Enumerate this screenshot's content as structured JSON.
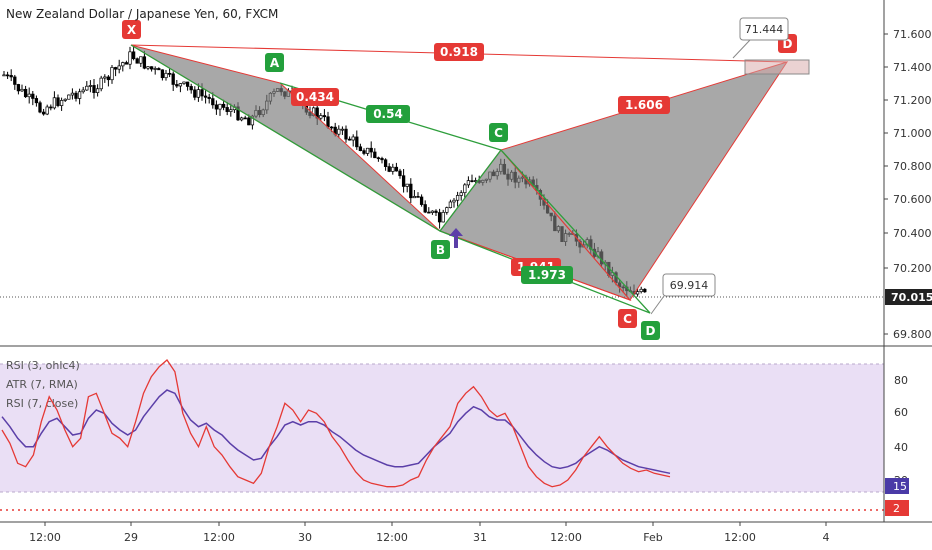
{
  "chart_data": {
    "type": "candlestick",
    "title": "New Zealand Dollar / Japanese Yen, 60, FXCM",
    "price_axis": {
      "ticks": [
        "71.600",
        "71.400",
        "71.200",
        "71.000",
        "70.800",
        "70.600",
        "70.400",
        "70.200",
        "69.800"
      ],
      "last_price": "70.015",
      "range": [
        69.75,
        71.75
      ]
    },
    "time_axis": {
      "labels": [
        "12:00",
        "29",
        "12:00",
        "30",
        "12:00",
        "31",
        "12:00",
        "Feb",
        "12:00",
        "4"
      ]
    },
    "pattern_points": {
      "X": {
        "label": "X",
        "price": 71.51
      },
      "A": {
        "label": "A",
        "price": 71.3
      },
      "B": {
        "label": "B",
        "price": 70.39
      },
      "C": {
        "label": "C",
        "price": 70.9
      },
      "C2": {
        "label": "C",
        "price": 70.05
      },
      "D": {
        "label": "D",
        "price": 69.95
      },
      "D2": {
        "label": "D",
        "price": 71.44
      }
    },
    "ratios": [
      {
        "text": "0.918",
        "color": "red"
      },
      {
        "text": "0.434",
        "color": "red"
      },
      {
        "text": "0.54",
        "color": "green"
      },
      {
        "text": "1.606",
        "color": "red"
      },
      {
        "text": "1.941",
        "color": "red"
      },
      {
        "text": "1.973",
        "color": "green"
      }
    ],
    "callouts": [
      {
        "text": "71.444"
      },
      {
        "text": "69.914"
      }
    ],
    "indicators": {
      "legend": [
        "RSI (3, ohlc4)",
        "ATR (7, RMA)",
        "RSI (7, close)"
      ],
      "ticks": [
        "80",
        "60",
        "40",
        "20"
      ],
      "badges": [
        {
          "text": "15",
          "color": "#4a3aa7"
        },
        {
          "text": "2",
          "color": "#e53935"
        }
      ],
      "rsi_fast": [
        50,
        42,
        30,
        28,
        35,
        55,
        70,
        62,
        50,
        40,
        45,
        70,
        72,
        60,
        48,
        45,
        40,
        55,
        72,
        82,
        88,
        92,
        85,
        60,
        48,
        40,
        52,
        40,
        35,
        28,
        22,
        20,
        18,
        24,
        40,
        52,
        66,
        62,
        55,
        62,
        60,
        55,
        46,
        40,
        32,
        25,
        20,
        18,
        17,
        16,
        16,
        17,
        20,
        22,
        32,
        40,
        46,
        52,
        66,
        72,
        76,
        70,
        62,
        58,
        60,
        52,
        40,
        28,
        22,
        18,
        16,
        17,
        20,
        26,
        34,
        40,
        46,
        40,
        35,
        30,
        27,
        25,
        26,
        24,
        23,
        22
      ],
      "rsi_slow": [
        58,
        52,
        45,
        40,
        40,
        48,
        55,
        57,
        52,
        47,
        48,
        57,
        62,
        60,
        54,
        50,
        47,
        50,
        58,
        64,
        70,
        74,
        72,
        63,
        56,
        52,
        54,
        50,
        47,
        42,
        38,
        35,
        32,
        33,
        40,
        46,
        53,
        55,
        53,
        55,
        55,
        53,
        49,
        46,
        42,
        38,
        35,
        33,
        31,
        29,
        28,
        28,
        29,
        30,
        35,
        40,
        44,
        48,
        55,
        60,
        64,
        62,
        58,
        56,
        56,
        52,
        46,
        40,
        35,
        31,
        28,
        27,
        28,
        30,
        34,
        37,
        40,
        38,
        35,
        32,
        30,
        28,
        27,
        26,
        25,
        24
      ]
    }
  }
}
